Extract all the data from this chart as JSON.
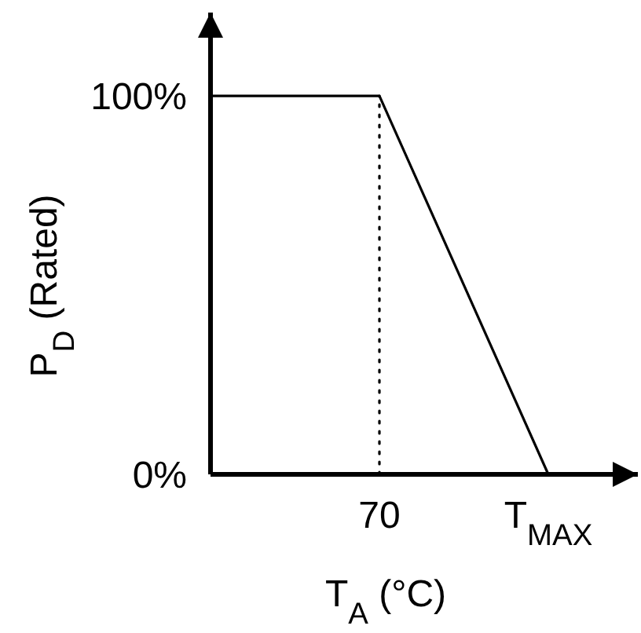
{
  "chart_data": {
    "type": "line",
    "xlabel": "T$_{A}$ (°C)",
    "ylabel": "P$_{D}$ (Rated)",
    "categories": [
      null,
      "70",
      "T$_{MAX}$"
    ],
    "series": [
      {
        "color": "#000000",
        "values": [
          100,
          100,
          0
        ]
      }
    ],
    "ylim": [
      0,
      122
    ],
    "yticks": [
      {
        "value": 0,
        "label": "0%"
      },
      {
        "value": 100,
        "label": "100%"
      }
    ],
    "ref_lines": [
      {
        "axis": "x",
        "value": "70",
        "line_style": "dotted",
        "color": "#000000"
      }
    ],
    "grid": false,
    "marker": "none",
    "line_style": "solid"
  }
}
